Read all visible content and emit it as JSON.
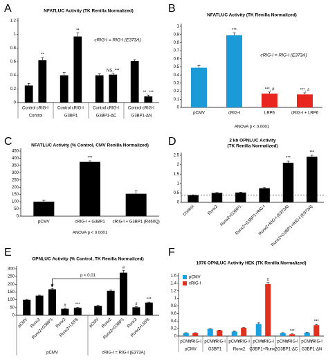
{
  "chart_data": [
    {
      "panel": "A",
      "type": "grouped_bar",
      "title": "NFATLUC Activity (TK Renilla Normalized)",
      "categories": [
        "Control",
        "G3BP1",
        "G3BP1-ΔC",
        "G3BP1-ΔN"
      ],
      "series": [
        {
          "name": "Control",
          "color": "#000000",
          "values": [
            0.25,
            0.4,
            0.4,
            0.61
          ],
          "errors": [
            0.03,
            0.04,
            0.02,
            0.02
          ],
          "annotations": [
            null,
            null,
            null,
            null
          ]
        },
        {
          "name": "cRIG-I",
          "color": "#000000",
          "values": [
            0.62,
            0.97,
            0.41,
            0.09
          ],
          "errors": [
            0.04,
            0.05,
            0.02,
            0.02
          ],
          "annotations": [
            "**",
            "**",
            "NS, ***",
            "**, ***"
          ]
        }
      ],
      "note": "cRIG-I = RIG-I (E373A)",
      "ylim": [
        0,
        1.2
      ],
      "yticks": [
        0,
        0.2,
        0.4,
        0.6,
        0.8,
        1,
        1.2
      ]
    },
    {
      "panel": "B",
      "type": "bar",
      "title": "NFATLUC Activity (TK Renilla Normalized)",
      "categories": [
        "pCMV",
        "cRIG-I",
        "LRP6",
        "cRIG-I + LRP6"
      ],
      "values": [
        0.49,
        0.89,
        0.17,
        0.16
      ],
      "errors": [
        0.03,
        0.03,
        0.02,
        0.02
      ],
      "annotations": [
        null,
        "***",
        "***, #",
        "***, #"
      ],
      "colors": [
        "#1a9ad6",
        "#1a9ad6",
        "#e8251f",
        "#e8251f"
      ],
      "note": "cRIG-I = RIG-I (E373A)",
      "footnote": "ANOVA p < 0.0001",
      "ylim": [
        0,
        1
      ],
      "yticks": [
        0,
        0.1,
        0.2,
        0.3,
        0.4,
        0.5,
        0.6,
        0.7,
        0.8,
        0.9,
        1
      ]
    },
    {
      "panel": "C",
      "type": "bar",
      "title": "NFATLUC Activity (% Control, CMV Renilla Normalized)",
      "categories": [
        "pCMV",
        "cRIG-I + G3BP1",
        "cRIG-I + G3BP1 (R460Q)"
      ],
      "values": [
        100,
        375,
        155
      ],
      "errors": [
        10,
        8,
        20
      ],
      "annotations": [
        null,
        "***",
        null
      ],
      "color": "#000000",
      "footnote": "ANOVA p < 0.0001",
      "ylim": [
        0,
        450
      ],
      "yticks": [
        0,
        50,
        100,
        150,
        200,
        250,
        300,
        350,
        400,
        450
      ]
    },
    {
      "panel": "D",
      "type": "bar",
      "title": "2 kb OPNLUC Activity",
      "subtitle": "(TK Renilla Normalized)",
      "categories": [
        "Control",
        "Runx2",
        "Runx2+G3BP1",
        "Runx2+G3BP1+RIG-I",
        "Runx2+RIG-I (E373A)",
        "Runx2+G3BP1+RIG-I (E373A)"
      ],
      "values": [
        0.38,
        0.5,
        0.52,
        0.75,
        2.1,
        2.42
      ],
      "errors": [
        0.02,
        0.02,
        0.02,
        0.03,
        0.1,
        0.08
      ],
      "annotations": [
        null,
        null,
        null,
        null,
        "***",
        "***"
      ],
      "color": "#000000",
      "reference_line": 0.38,
      "rotate_labels": true,
      "ylim": [
        0,
        2.5
      ],
      "yticks": [
        0,
        0.5,
        1,
        1.5,
        2,
        2.5
      ]
    },
    {
      "panel": "E",
      "type": "grouped_bar",
      "title": "OPNLUC Activity (% Control, TK Renilla Normalized)",
      "categories": [
        "pCMV",
        "cRIG-I = RIG-I (E373A)"
      ],
      "series": [
        {
          "name": "pCMV",
          "color": "#000000",
          "values": [
            100,
            60
          ],
          "errors": [
            3,
            5
          ],
          "annotations": [
            null,
            null
          ]
        },
        {
          "name": "Runx2",
          "color": "#000000",
          "values": [
            127,
            158
          ],
          "errors": [
            3,
            5
          ],
          "annotations": [
            null,
            null
          ]
        },
        {
          "name": "Runx2+G3BP1",
          "color": "#000000",
          "values": [
            168,
            275
          ],
          "errors": [
            5,
            15
          ],
          "annotations": [
            "#",
            "#"
          ]
        },
        {
          "name": "Runx3",
          "color": "#000000",
          "values": [
            42,
            52
          ],
          "errors": [
            3,
            3
          ],
          "annotations": [
            "#",
            "#"
          ]
        },
        {
          "name": "Runx2+LRP6",
          "color": "#000000",
          "values": [
            48,
            82
          ],
          "errors": [
            3,
            3
          ],
          "annotations": [
            "***",
            "***"
          ]
        }
      ],
      "comparison": "p < 0.01",
      "rotate_labels": true,
      "ylim": [
        0,
        300
      ],
      "yticks": [
        0,
        50,
        100,
        150,
        200,
        250,
        300
      ]
    },
    {
      "panel": "F",
      "type": "grouped_bar",
      "title": "1976 OPNLUC Activity HEK (TK Renilla Normalized)",
      "categories": [
        "pCMV",
        "G3BP1",
        "Runx2",
        "G3BP1+Runx2",
        "G3BP1-ΔC",
        "G3BP1-ΔN"
      ],
      "series": [
        {
          "name": "pCMV",
          "color": "#1ba1e2",
          "values": [
            0.08,
            0.19,
            0.12,
            0.32,
            0.08,
            0.09
          ],
          "errors": [
            0.01,
            0.01,
            0.01,
            0.03,
            0.01,
            0.01
          ],
          "annotations": [
            null,
            null,
            null,
            null,
            null,
            null
          ]
        },
        {
          "name": "cRIG-I",
          "color": "#e0301e",
          "values": [
            0.08,
            0.15,
            0.22,
            1.38,
            0.05,
            0.29
          ],
          "errors": [
            0.01,
            0.01,
            0.01,
            0.04,
            0.01,
            0.02
          ],
          "annotations": [
            null,
            null,
            null,
            "#",
            "***",
            "***"
          ]
        }
      ],
      "legend": "top-left",
      "ylim": [
        0,
        1.6
      ],
      "yticks": [
        0,
        0.2,
        0.4,
        0.6,
        0.8,
        1,
        1.2,
        1.4,
        1.6
      ]
    }
  ]
}
